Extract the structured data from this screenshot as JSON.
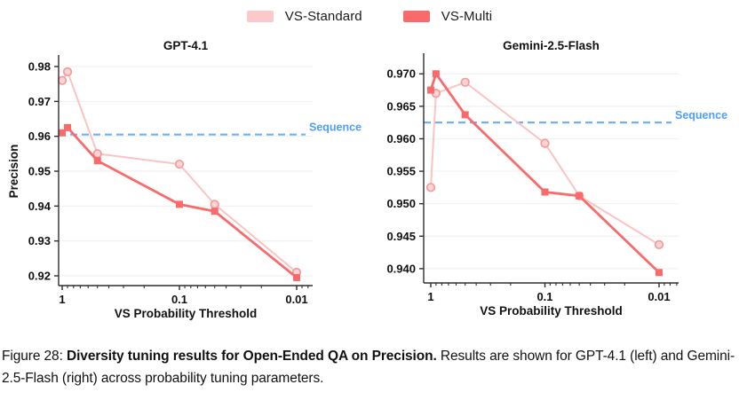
{
  "legend": {
    "items": [
      {
        "label": "VS-Standard",
        "color": "#FBC9C9"
      },
      {
        "label": "VS-Multi",
        "color": "#F96B6B"
      }
    ]
  },
  "colors": {
    "vs_standard_line": "#FBC3C3",
    "vs_standard_edge": "#F59A9A",
    "vs_standard_fill": "#FCD6D6",
    "vs_multi": "#F96B6B",
    "sequence_line": "#6FB1F4",
    "sequence_text": "#4E9FF5",
    "grid": "#F1F1F1",
    "spine": "#2E2E2E"
  },
  "chart_data": [
    {
      "type": "line",
      "title": "GPT-4.1",
      "xlabel": "VS Probability Threshold",
      "ylabel": "Precision",
      "x_scale": "log-reversed",
      "x": [
        1,
        0.9,
        0.5,
        0.1,
        0.05,
        0.01
      ],
      "x_ticks": [
        {
          "v": 1,
          "label": "1"
        },
        {
          "v": 0.1,
          "label": "0.1"
        },
        {
          "v": 0.01,
          "label": "0.01"
        }
      ],
      "y_ticks": [
        {
          "v": 0.92,
          "label": "0.92"
        },
        {
          "v": 0.93,
          "label": "0.93"
        },
        {
          "v": 0.94,
          "label": "0.94"
        },
        {
          "v": 0.95,
          "label": "0.95"
        },
        {
          "v": 0.96,
          "label": "0.96"
        },
        {
          "v": 0.97,
          "label": "0.97"
        },
        {
          "v": 0.98,
          "label": "0.98"
        }
      ],
      "ylim": [
        0.9172,
        0.9828
      ],
      "grid": true,
      "series": [
        {
          "name": "VS-Standard",
          "values": [
            0.976,
            0.9785,
            0.955,
            0.952,
            0.9405,
            0.921
          ]
        },
        {
          "name": "VS-Multi",
          "values": [
            0.961,
            0.9625,
            0.953,
            0.9405,
            0.9385,
            0.9195
          ]
        }
      ],
      "hline": {
        "label": "Sequence",
        "value": 0.9605
      }
    },
    {
      "type": "line",
      "title": "Gemini-2.5-Flash",
      "xlabel": "VS Probability Threshold",
      "ylabel": "",
      "x_scale": "log-reversed",
      "x": [
        1,
        0.9,
        0.5,
        0.1,
        0.05,
        0.01
      ],
      "x_ticks": [
        {
          "v": 1,
          "label": "1"
        },
        {
          "v": 0.1,
          "label": "0.1"
        },
        {
          "v": 0.01,
          "label": "0.01"
        }
      ],
      "y_ticks": [
        {
          "v": 0.94,
          "label": "0.940"
        },
        {
          "v": 0.945,
          "label": "0.945"
        },
        {
          "v": 0.95,
          "label": "0.950"
        },
        {
          "v": 0.955,
          "label": "0.955"
        },
        {
          "v": 0.96,
          "label": "0.960"
        },
        {
          "v": 0.965,
          "label": "0.965"
        },
        {
          "v": 0.97,
          "label": "0.970"
        }
      ],
      "ylim": [
        0.9378,
        0.9729
      ],
      "grid": true,
      "series": [
        {
          "name": "VS-Standard",
          "values": [
            0.9525,
            0.967,
            0.9687,
            0.9593,
            0.9512,
            0.9437
          ]
        },
        {
          "name": "VS-Multi",
          "values": [
            0.9675,
            0.97,
            0.9637,
            0.9518,
            0.9512,
            0.9394
          ]
        }
      ],
      "hline": {
        "label": "Sequence",
        "value": 0.9625
      }
    }
  ],
  "caption": {
    "prefix": "Figure 28: ",
    "bold": "Diversity tuning results for Open-Ended QA on Precision.",
    "rest": " Results are shown for GPT-4.1 (left) and Gemini-2.5-Flash (right) across probability tuning parameters."
  }
}
